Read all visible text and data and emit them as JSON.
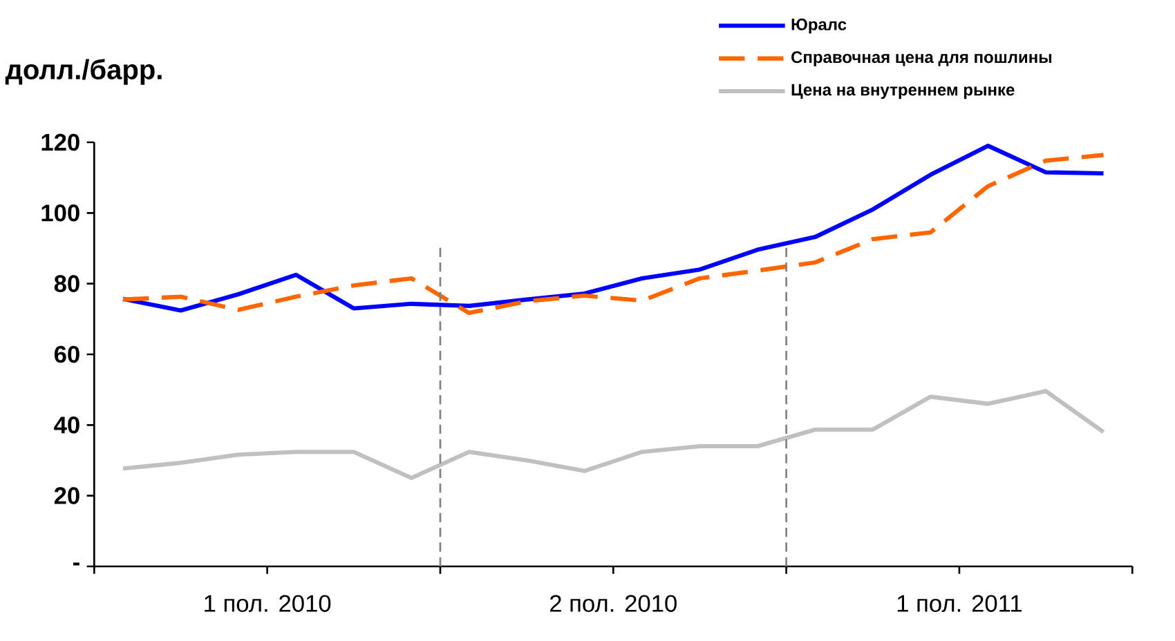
{
  "chart_data": {
    "type": "line",
    "ylabel": "долл./барр.",
    "categories": [
      null,
      null,
      null,
      null,
      null,
      null,
      null,
      null,
      null,
      null,
      null,
      null,
      null,
      null,
      null,
      null,
      null,
      null
    ],
    "annotations": [
      "1 пол. 2010",
      "2 пол. 2010",
      "1 пол. 2011"
    ],
    "ylim": [
      0,
      120
    ],
    "yticks": [
      {
        "value": 0,
        "label": "-"
      },
      20,
      40,
      60,
      80,
      100,
      120
    ],
    "series": [
      {
        "name": "Юралс",
        "color": "#0000ff",
        "line_style": "solid",
        "values": [
          75.7,
          72.4,
          77,
          82.5,
          73,
          74.3,
          73.7,
          75.5,
          77.2,
          81.5,
          84,
          89.6,
          93.2,
          101,
          110.8,
          119,
          111.5,
          111.2
        ]
      },
      {
        "name": "Справочная цена для пошлины",
        "color": "#ff6600",
        "line_style": "dashed",
        "values": [
          75.5,
          76.3,
          72.6,
          76.3,
          79.5,
          81.5,
          71.7,
          75,
          76.6,
          75.2,
          81.5,
          83.7,
          86,
          92.6,
          94.5,
          107.6,
          114.8,
          116.4
        ]
      },
      {
        "name": "Цена на внутреннем рынке",
        "color": "#c0c0c0",
        "line_style": "solid",
        "values": [
          27.7,
          29.3,
          31.6,
          32.4,
          32.4,
          25,
          32.4,
          30,
          27,
          32.4,
          34,
          34,
          38.7,
          38.7,
          48,
          46,
          49.6,
          38
        ]
      }
    ],
    "grid": false,
    "legend": "top right"
  }
}
